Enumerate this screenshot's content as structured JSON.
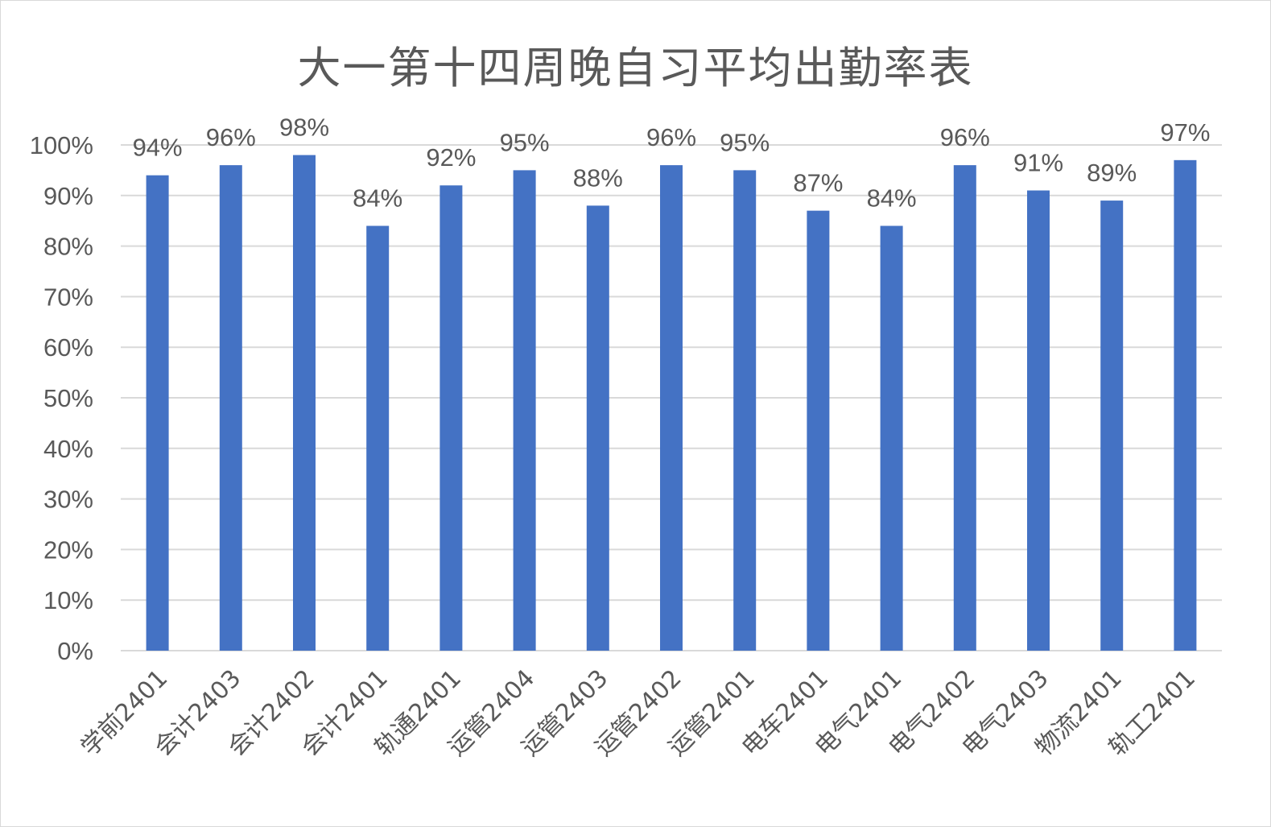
{
  "chart_data": {
    "type": "bar",
    "title": "大一第十四周晚自习平均出勤率表",
    "categories": [
      "学前2401",
      "会计2403",
      "会计2402",
      "会计2401",
      "轨通2401",
      "运管2404",
      "运管2403",
      "运管2402",
      "运管2401",
      "电车2401",
      "电气2401",
      "电气2402",
      "电气2403",
      "物流2401",
      "轨工2401"
    ],
    "values": [
      94,
      96,
      98,
      84,
      92,
      95,
      88,
      96,
      95,
      87,
      84,
      96,
      91,
      89,
      97
    ],
    "data_labels": [
      "94%",
      "96%",
      "98%",
      "84%",
      "92%",
      "95%",
      "88%",
      "96%",
      "95%",
      "87%",
      "84%",
      "96%",
      "91%",
      "89%",
      "97%"
    ],
    "y_ticks": [
      "0%",
      "10%",
      "20%",
      "30%",
      "40%",
      "50%",
      "60%",
      "70%",
      "80%",
      "90%",
      "100%"
    ],
    "ylim": [
      0,
      100
    ],
    "xlabel": "",
    "ylabel": "",
    "grid": true,
    "legend": "none",
    "bar_color": "#4472c4",
    "grid_color": "#d9d9d9",
    "text_color": "#595959"
  }
}
